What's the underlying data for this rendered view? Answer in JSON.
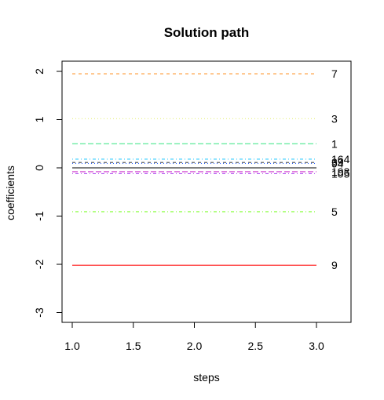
{
  "chart_data": {
    "type": "line",
    "title": "Solution path",
    "xlabel": "steps",
    "ylabel": "coefficients",
    "xlim": [
      1.0,
      3.0
    ],
    "ylim": [
      -3,
      2
    ],
    "x_ticks": [
      "1.0",
      "1.5",
      "2.0",
      "2.5",
      "3.0"
    ],
    "y_ticks": [
      "-3",
      "-2",
      "-1",
      "0",
      "1",
      "2"
    ],
    "grid": false,
    "legend": "none",
    "x": [
      1,
      2,
      3
    ],
    "series": [
      {
        "label": "7",
        "values": [
          1.95,
          1.95,
          1.95
        ],
        "color": "#ff9933",
        "dash": "dashed"
      },
      {
        "label": "3",
        "values": [
          1.02,
          1.02,
          1.02
        ],
        "color": "#e6f07a",
        "dash": "dotted"
      },
      {
        "label": "1",
        "values": [
          0.5,
          0.5,
          0.5
        ],
        "color": "#33e680",
        "dash": "longdash"
      },
      {
        "label": "164",
        "values": [
          0.18,
          0.18,
          0.18
        ],
        "color": "#33ccff",
        "dash": "dotdash"
      },
      {
        "label": "39",
        "values": [
          0.11,
          0.11,
          0.11
        ],
        "color": "#444444",
        "dash": "dashed"
      },
      {
        "label": "94",
        "values": [
          0.09,
          0.09,
          0.09
        ],
        "color": "#3366ff",
        "dash": "dotted"
      },
      {
        "label": "0",
        "values": [
          0.0,
          0.0,
          0.0
        ],
        "color": "#000000",
        "dash": "solid"
      },
      {
        "label": "193",
        "values": [
          -0.08,
          -0.08,
          -0.08
        ],
        "color": "#cc33cc",
        "dash": "longdash"
      },
      {
        "label": "105",
        "values": [
          -0.12,
          -0.12,
          -0.12
        ],
        "color": "#aa33ee",
        "dash": "dotdash"
      },
      {
        "label": "5",
        "values": [
          -0.91,
          -0.91,
          -0.91
        ],
        "color": "#80ff33",
        "dash": "dotdash"
      },
      {
        "label": "9",
        "values": [
          -2.02,
          -2.02,
          -2.02
        ],
        "color": "#ff1a1a",
        "dash": "solid"
      }
    ],
    "line_labels": [
      "7",
      "3",
      "1",
      "164",
      "39",
      "94",
      "193",
      "105",
      "5",
      "9"
    ]
  }
}
